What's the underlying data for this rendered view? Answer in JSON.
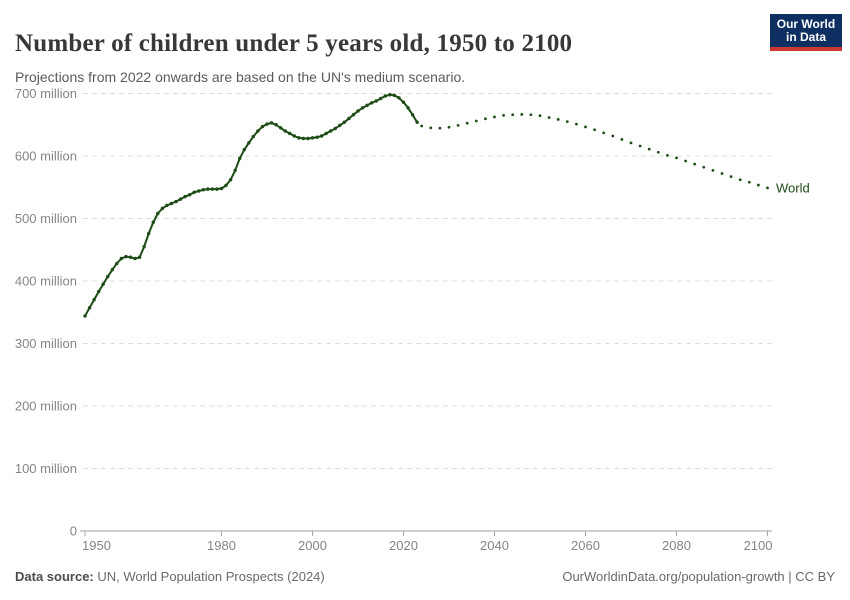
{
  "header": {
    "title": "Number of children under 5 years old, 1950 to 2100",
    "subtitle": "Projections from 2022 onwards are based on the UN's medium scenario."
  },
  "logo": {
    "line1": "Our World",
    "line2": "in Data",
    "bg_color": "#0e2f62",
    "accent_color": "#cd3731"
  },
  "footer": {
    "source_label": "Data source:",
    "source_text": " UN, World Population Prospects (2024)",
    "credit": "OurWorldinData.org/population-growth | CC BY"
  },
  "colors": {
    "line": "#1d4c15",
    "grid": "#dddddd",
    "axis": "#a3a3a3",
    "tick_label": "#858585",
    "title": "#383838",
    "subtitle": "#5b5b5b"
  },
  "chart_data": {
    "type": "line",
    "title": "Number of children under 5 years old, 1950 to 2100",
    "subtitle": "Projections from 2022 onwards are based on the UN's medium scenario.",
    "xlabel": "",
    "ylabel": "",
    "unit": "million",
    "xlim": [
      1950,
      2100
    ],
    "ylim": [
      0,
      700
    ],
    "grid": "horizontal-dashed",
    "legend_position": "end-of-line-label",
    "end_label": "World",
    "xticks": [
      {
        "year": 1950,
        "label": "1950"
      },
      {
        "year": 1980,
        "label": "1980"
      },
      {
        "year": 2000,
        "label": "2000"
      },
      {
        "year": 2020,
        "label": "2020"
      },
      {
        "year": 2040,
        "label": "2040"
      },
      {
        "year": 2060,
        "label": "2060"
      },
      {
        "year": 2080,
        "label": "2080"
      },
      {
        "year": 2100,
        "label": "2100"
      }
    ],
    "yticks": [
      {
        "value": 0,
        "label": "0"
      },
      {
        "value": 100,
        "label": "100 million"
      },
      {
        "value": 200,
        "label": "200 million"
      },
      {
        "value": 300,
        "label": "300 million"
      },
      {
        "value": 400,
        "label": "400 million"
      },
      {
        "value": 500,
        "label": "500 million"
      },
      {
        "value": 600,
        "label": "600 million"
      },
      {
        "value": 700,
        "label": "700 million"
      }
    ],
    "series": [
      {
        "name": "World (historical estimates)",
        "style": "solid",
        "markers": "yearly-dots",
        "start_year": 1950,
        "step": 1,
        "values": [
          344,
          357,
          370,
          383,
          395,
          407,
          418,
          428,
          436,
          439,
          438,
          436,
          438,
          455,
          476,
          494,
          508,
          516,
          521,
          524,
          527,
          531,
          535,
          538,
          542,
          544,
          546,
          547,
          547,
          547,
          548,
          553,
          562,
          577,
          596,
          610,
          621,
          631,
          640,
          647,
          651,
          653,
          650,
          645,
          640,
          636,
          632,
          629,
          628,
          628,
          629,
          630,
          632,
          636,
          640,
          644,
          649,
          654,
          660,
          666,
          672,
          677,
          681,
          685,
          688,
          692,
          696,
          698,
          697,
          693,
          686,
          677,
          666,
          654
        ]
      },
      {
        "name": "World (UN medium projection)",
        "style": "dotted",
        "start_year": 2024,
        "step": 2,
        "values": [
          648,
          645,
          644.5,
          646,
          649,
          652.5,
          656,
          659.5,
          662.5,
          665,
          666,
          666.5,
          666,
          664.5,
          661.5,
          658.5,
          655,
          651,
          646.5,
          642,
          637,
          632,
          626.5,
          621,
          616,
          611,
          606,
          601,
          597,
          592,
          587,
          582,
          577,
          572,
          567,
          562,
          558,
          553.5,
          549
        ]
      }
    ]
  }
}
